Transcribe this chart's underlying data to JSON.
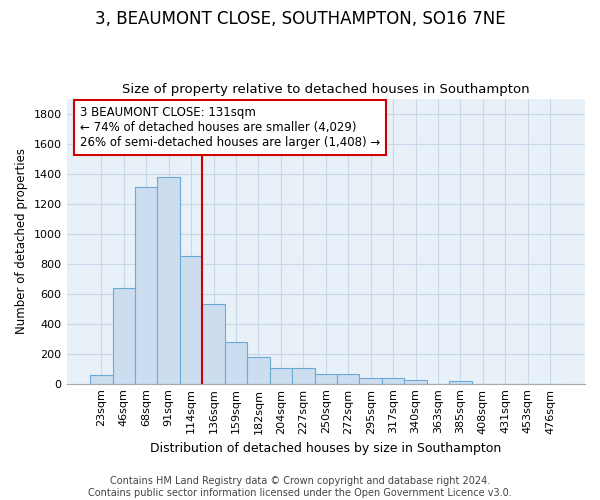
{
  "title": "3, BEAUMONT CLOSE, SOUTHAMPTON, SO16 7NE",
  "subtitle": "Size of property relative to detached houses in Southampton",
  "xlabel": "Distribution of detached houses by size in Southampton",
  "ylabel": "Number of detached properties",
  "categories": [
    "23sqm",
    "46sqm",
    "68sqm",
    "91sqm",
    "114sqm",
    "136sqm",
    "159sqm",
    "182sqm",
    "204sqm",
    "227sqm",
    "250sqm",
    "272sqm",
    "295sqm",
    "317sqm",
    "340sqm",
    "363sqm",
    "385sqm",
    "408sqm",
    "431sqm",
    "453sqm",
    "476sqm"
  ],
  "values": [
    55,
    640,
    1310,
    1380,
    850,
    530,
    275,
    180,
    105,
    105,
    65,
    65,
    35,
    35,
    25,
    0,
    15,
    0,
    0,
    0,
    0
  ],
  "bar_color": "#ccddf0",
  "bar_edge_color": "#6aaad4",
  "grid_color": "#c8d8e8",
  "background_color": "#e8f0f8",
  "vline_color": "#cc0000",
  "annotation_text": "3 BEAUMONT CLOSE: 131sqm\n← 74% of detached houses are smaller (4,029)\n26% of semi-detached houses are larger (1,408) →",
  "annotation_box_color": "#cc0000",
  "ylim": [
    0,
    1900
  ],
  "yticks": [
    0,
    200,
    400,
    600,
    800,
    1000,
    1200,
    1400,
    1600,
    1800
  ],
  "footer_line1": "Contains HM Land Registry data © Crown copyright and database right 2024.",
  "footer_line2": "Contains public sector information licensed under the Open Government Licence v3.0.",
  "title_fontsize": 12,
  "subtitle_fontsize": 9.5,
  "xlabel_fontsize": 9,
  "ylabel_fontsize": 8.5,
  "tick_fontsize": 8,
  "footer_fontsize": 7,
  "annotation_fontsize": 8.5,
  "vline_bar_index": 5
}
